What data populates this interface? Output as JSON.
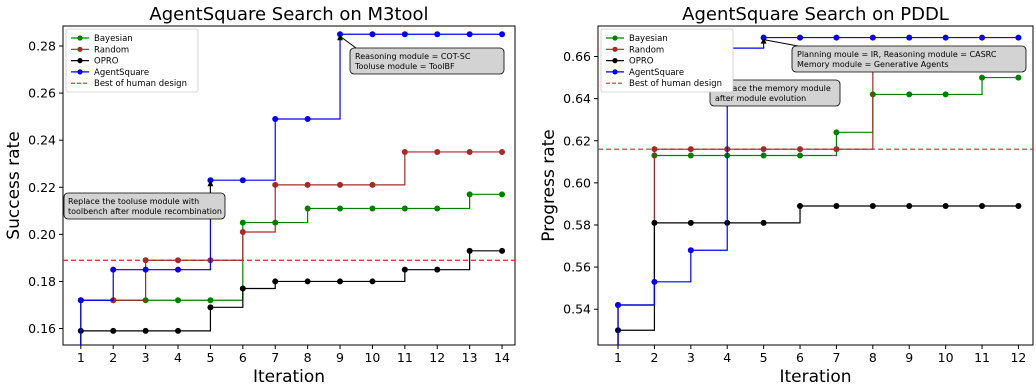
{
  "chart_data": [
    {
      "type": "line",
      "title": "AgentSquare Search on M3tool",
      "xlabel": "Iteration",
      "ylabel": "Success rate",
      "xlim": [
        0.45,
        14.4
      ],
      "ylim": [
        0.153,
        0.2885
      ],
      "xticks": [
        1,
        2,
        3,
        4,
        5,
        6,
        7,
        8,
        9,
        10,
        11,
        12,
        13,
        14
      ],
      "yticks": [
        0.16,
        0.18,
        0.2,
        0.22,
        0.24,
        0.26,
        0.28
      ],
      "ytick_labels": [
        "0.16",
        "0.18",
        "0.20",
        "0.22",
        "0.24",
        "0.26",
        "0.28"
      ],
      "step": true,
      "legend_position": "top-left",
      "reference_line": {
        "name": "Best of human design",
        "value": 0.189,
        "color": "#d62728"
      },
      "series": [
        {
          "name": "Bayesian",
          "color": "#008000",
          "x": [
            1,
            2,
            3,
            4,
            5,
            6,
            7,
            8,
            9,
            10,
            11,
            12,
            13,
            14
          ],
          "y": [
            0.172,
            0.172,
            0.172,
            0.172,
            0.172,
            0.205,
            0.205,
            0.211,
            0.211,
            0.211,
            0.211,
            0.211,
            0.217,
            0.217
          ]
        },
        {
          "name": "Random",
          "color": "#a52a2a",
          "x": [
            1,
            2,
            3,
            4,
            5,
            6,
            7,
            8,
            9,
            10,
            11,
            12,
            13,
            14
          ],
          "y": [
            0.172,
            0.172,
            0.189,
            0.189,
            0.189,
            0.201,
            0.221,
            0.221,
            0.221,
            0.221,
            0.235,
            0.235,
            0.235,
            0.235
          ]
        },
        {
          "name": "OPRO",
          "color": "#000000",
          "x": [
            1,
            2,
            3,
            4,
            5,
            6,
            7,
            8,
            9,
            10,
            11,
            12,
            13,
            14
          ],
          "y": [
            0.159,
            0.159,
            0.159,
            0.159,
            0.169,
            0.177,
            0.18,
            0.18,
            0.18,
            0.18,
            0.185,
            0.185,
            0.193,
            0.193
          ]
        },
        {
          "name": "AgentSquare",
          "color": "#0000ff",
          "x": [
            1,
            2,
            3,
            4,
            5,
            6,
            7,
            8,
            9,
            10,
            11,
            12,
            13,
            14
          ],
          "y": [
            0.172,
            0.185,
            0.185,
            0.185,
            0.223,
            0.223,
            0.249,
            0.249,
            0.285,
            0.285,
            0.285,
            0.285,
            0.285,
            0.285
          ]
        }
      ],
      "annotations": [
        {
          "lines": [
            "Reasoning module = COT-SC",
            "Tooluse module = ToolBF"
          ],
          "point": [
            9,
            0.285
          ]
        },
        {
          "lines": [
            "Replace the tooluse module with",
            "toolbench after module recombination"
          ],
          "point": [
            5,
            0.223
          ]
        }
      ]
    },
    {
      "type": "line",
      "title": "AgentSquare Search on PDDL",
      "xlabel": "Iteration",
      "ylabel": "Progress rate",
      "xlim": [
        0.45,
        12.4
      ],
      "ylim": [
        0.523,
        0.6745
      ],
      "xticks": [
        1,
        2,
        3,
        4,
        5,
        6,
        7,
        8,
        9,
        10,
        11,
        12
      ],
      "yticks": [
        0.54,
        0.56,
        0.58,
        0.6,
        0.62,
        0.64,
        0.66
      ],
      "ytick_labels": [
        "0.54",
        "0.56",
        "0.58",
        "0.60",
        "0.62",
        "0.64",
        "0.66"
      ],
      "step": true,
      "legend_position": "top-left",
      "reference_line": {
        "name": "Best of human design",
        "value": 0.616,
        "color": "#d62728"
      },
      "series": [
        {
          "name": "Bayesian",
          "color": "#008000",
          "x": [
            1,
            2,
            3,
            4,
            5,
            6,
            7,
            8,
            9,
            10,
            11,
            12
          ],
          "y": [
            0.542,
            0.613,
            0.613,
            0.613,
            0.613,
            0.613,
            0.624,
            0.642,
            0.642,
            0.642,
            0.65,
            0.65
          ]
        },
        {
          "name": "Random",
          "color": "#a52a2a",
          "x": [
            1,
            2,
            3,
            4,
            5,
            6,
            7,
            8,
            9,
            10,
            11,
            12
          ],
          "y": [
            0.542,
            0.616,
            0.616,
            0.616,
            0.616,
            0.616,
            0.616,
            0.66,
            0.66,
            0.66,
            0.66,
            0.66
          ]
        },
        {
          "name": "OPRO",
          "color": "#000000",
          "x": [
            1,
            2,
            3,
            4,
            5,
            6,
            7,
            8,
            9,
            10,
            11,
            12
          ],
          "y": [
            0.53,
            0.581,
            0.581,
            0.581,
            0.581,
            0.589,
            0.589,
            0.589,
            0.589,
            0.589,
            0.589,
            0.589
          ]
        },
        {
          "name": "AgentSquare",
          "color": "#0000ff",
          "x": [
            1,
            2,
            3,
            4,
            5,
            6,
            7,
            8,
            9,
            10,
            11,
            12
          ],
          "y": [
            0.542,
            0.553,
            0.568,
            0.664,
            0.669,
            0.669,
            0.669,
            0.669,
            0.669,
            0.669,
            0.669,
            0.669
          ]
        }
      ],
      "annotations": [
        {
          "lines": [
            "Planning moule = IR, Reasoning module = CASRC",
            "Memory module = Generative Agents"
          ],
          "point": [
            5,
            0.669
          ]
        },
        {
          "lines": [
            "Replace the memory module",
            " after module evolution"
          ],
          "point": [
            4,
            0.664
          ]
        }
      ]
    }
  ]
}
